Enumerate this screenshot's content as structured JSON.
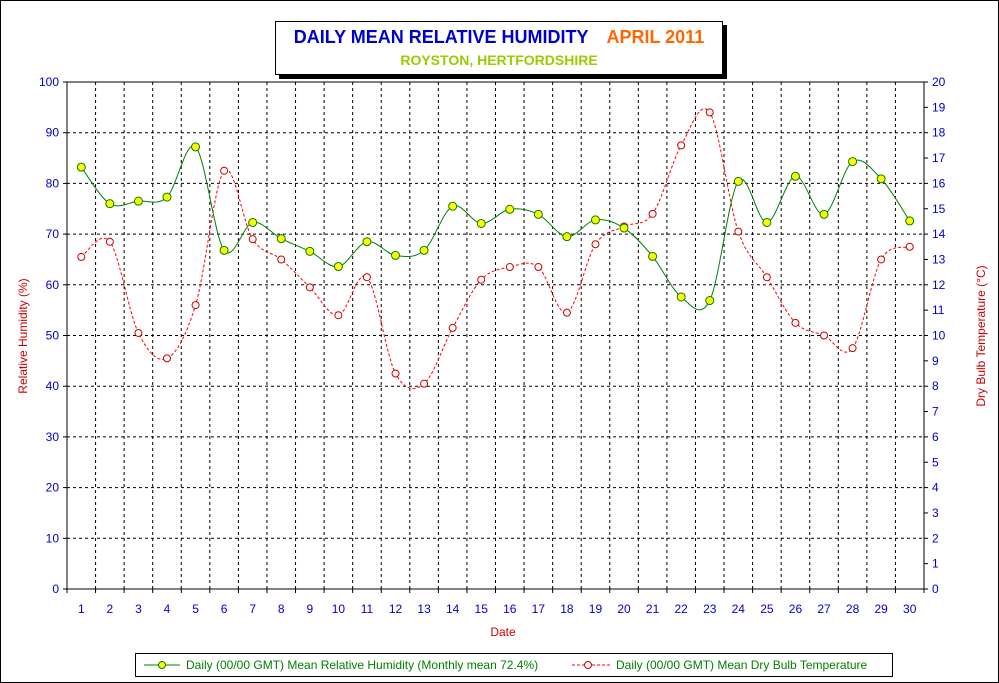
{
  "title": {
    "main": "DAILY MEAN RELATIVE HUMIDITY",
    "period": "APRIL 2011",
    "location": "ROYSTON, HERTFORDSHIRE"
  },
  "colors": {
    "humidity_line": "#008000",
    "humidity_marker": "#ffff00",
    "temperature_line": "#ff0000",
    "grid": "#000000",
    "tick_labels": "#0000cc",
    "axis_titles": "#cc0000"
  },
  "legend": {
    "humidity": "Daily (00/00 GMT) Mean Relative Humidity (Monthly mean 72.4%)",
    "temperature": "Daily (00/00 GMT) Mean Dry Bulb Temperature"
  },
  "chart_data": {
    "type": "line",
    "xlabel": "Date",
    "ylabel": "Relative Humidity (%)",
    "y2label": "Dry Bulb Temperature (°C)",
    "x": [
      1,
      2,
      3,
      4,
      5,
      6,
      7,
      8,
      9,
      10,
      11,
      12,
      13,
      14,
      15,
      16,
      17,
      18,
      19,
      20,
      21,
      22,
      23,
      24,
      25,
      26,
      27,
      28,
      29,
      30
    ],
    "xlim": [
      0.5,
      30.5
    ],
    "ylim": [
      0,
      100
    ],
    "y_ticks": [
      0,
      10,
      20,
      30,
      40,
      50,
      60,
      70,
      80,
      90,
      100
    ],
    "y2lim": [
      0,
      20
    ],
    "y2_ticks": [
      0,
      1,
      2,
      3,
      4,
      5,
      6,
      7,
      8,
      9,
      10,
      11,
      12,
      13,
      14,
      15,
      16,
      17,
      18,
      19,
      20
    ],
    "grid": true,
    "smooth": true,
    "legend_position": "bottom",
    "series": [
      {
        "name": "Daily (00/00 GMT) Mean Relative Humidity (Monthly mean 72.4%)",
        "axis": "left",
        "style": "solid",
        "values": [
          83.2,
          76.0,
          76.5,
          77.3,
          87.2,
          66.8,
          72.3,
          69.1,
          66.6,
          63.6,
          68.5,
          65.8,
          66.8,
          75.5,
          72.1,
          74.9,
          73.9,
          69.5,
          72.8,
          71.2,
          65.6,
          57.6,
          56.9,
          80.4,
          72.3,
          81.4,
          73.9,
          84.3,
          80.9,
          72.6
        ]
      },
      {
        "name": "Daily (00/00 GMT) Mean Dry Bulb Temperature",
        "axis": "right",
        "style": "dashed",
        "values": [
          13.1,
          13.7,
          10.1,
          9.1,
          11.2,
          16.5,
          13.8,
          13.0,
          11.9,
          10.8,
          12.3,
          8.5,
          8.1,
          10.3,
          12.2,
          12.7,
          12.7,
          10.9,
          13.6,
          14.3,
          14.8,
          17.5,
          18.8,
          14.1,
          12.3,
          10.5,
          10.0,
          9.5,
          13.0,
          13.5
        ]
      }
    ]
  }
}
